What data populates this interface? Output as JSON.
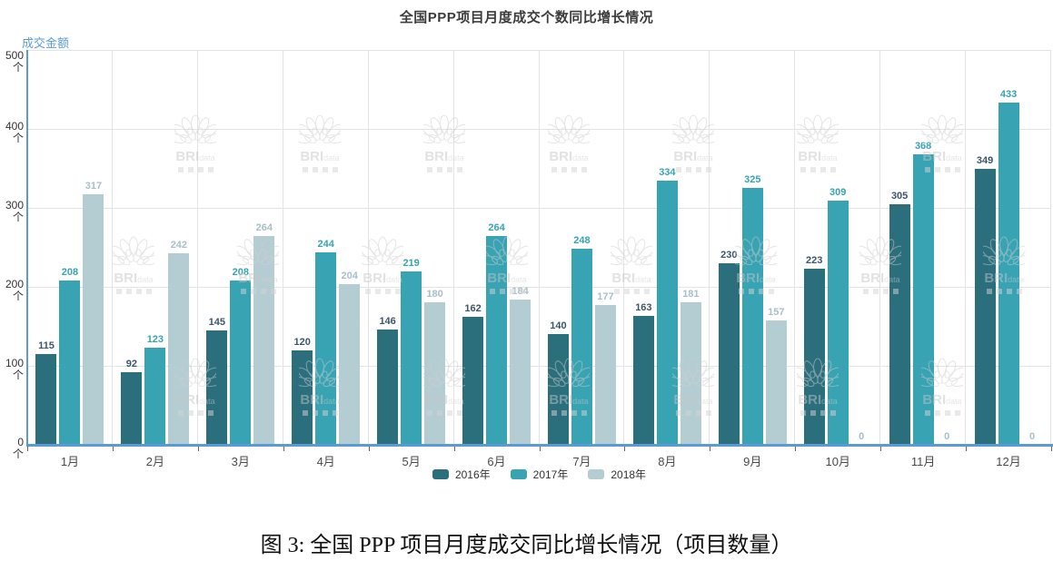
{
  "title": "全国PPP项目月度成交个数同比增长情况",
  "y_axis": {
    "title": "成交金额",
    "unit": "个",
    "ticks": [
      500,
      400,
      300,
      200,
      100,
      0
    ]
  },
  "chart_data": {
    "type": "bar",
    "title": "全国PPP项目月度成交个数同比增长情况",
    "categories": [
      "1月",
      "2月",
      "3月",
      "4月",
      "5月",
      "6月",
      "7月",
      "8月",
      "9月",
      "10月",
      "11月",
      "12月"
    ],
    "series": [
      {
        "name": "2016年",
        "color": "#2b6f7d",
        "label_color": "#3b566b",
        "values": [
          115,
          92,
          145,
          120,
          146,
          162,
          140,
          163,
          230,
          223,
          305,
          349
        ]
      },
      {
        "name": "2017年",
        "color": "#38a3b2",
        "label_color": "#38a3b2",
        "values": [
          208,
          123,
          208,
          244,
          219,
          264,
          248,
          334,
          325,
          309,
          368,
          433
        ]
      },
      {
        "name": "2018年",
        "color": "#b4cdd3",
        "label_color": "#a7bfc9",
        "values": [
          317,
          242,
          264,
          204,
          180,
          184,
          177,
          181,
          157,
          0,
          0,
          0
        ]
      }
    ],
    "ylabel": "成交金额",
    "ylim": [
      0,
      500
    ],
    "y_tick_step": 100,
    "grid": true,
    "legend_position": "bottom"
  },
  "legend": [
    {
      "label": "2016年"
    },
    {
      "label": "2017年"
    },
    {
      "label": "2018年"
    }
  ],
  "watermark": {
    "brand": "BRI",
    "sub": "data"
  },
  "caption": "图 3: 全国 PPP 项目月度成交同比增长情况（项目数量）",
  "colors": {
    "axis": "#5b9bd5",
    "grid": "#e3e3e3",
    "title_text": "#3c3c3c",
    "tick_text": "#333333",
    "month_text": "#4a4a4a",
    "caption_text": "#111111"
  }
}
